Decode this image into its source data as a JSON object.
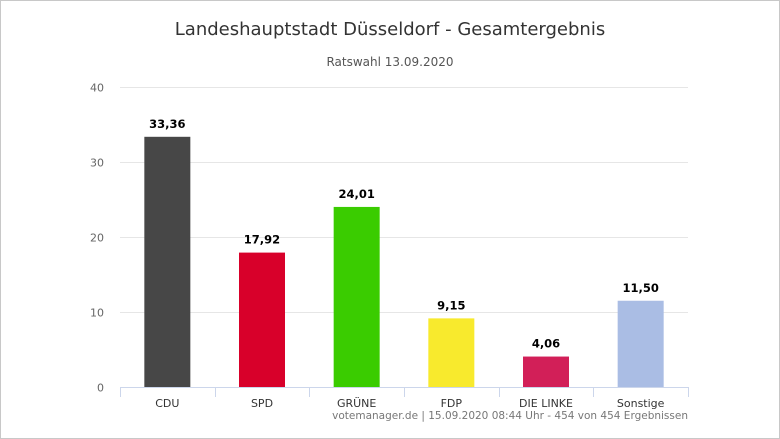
{
  "header": {
    "title": "Landeshauptstadt Düsseldorf - Gesamtergebnis",
    "subtitle": "Ratswahl 13.09.2020"
  },
  "footer": {
    "credit": "votemanager.de | 15.09.2020 08:44 Uhr - 454 von 454 Ergebnissen"
  },
  "chart_data": {
    "type": "bar",
    "title": "Landeshauptstadt Düsseldorf - Gesamtergebnis",
    "subtitle": "Ratswahl 13.09.2020",
    "categories": [
      "CDU",
      "SPD",
      "GRÜNE",
      "FDP",
      "DIE LINKE",
      "Sonstige"
    ],
    "values": [
      33.36,
      17.92,
      24.01,
      9.15,
      4.06,
      11.5
    ],
    "data_labels": [
      "33,36",
      "17,92",
      "24,01",
      "9,15",
      "4,06",
      "11,50"
    ],
    "colors": [
      "#474747",
      "#d8002a",
      "#3acc00",
      "#f8ea2d",
      "#d21f58",
      "#aabde4"
    ],
    "ylim": [
      0,
      40
    ],
    "yticks": [
      0,
      10,
      20,
      30,
      40
    ],
    "grid": true,
    "xlabel": "",
    "ylabel": ""
  }
}
